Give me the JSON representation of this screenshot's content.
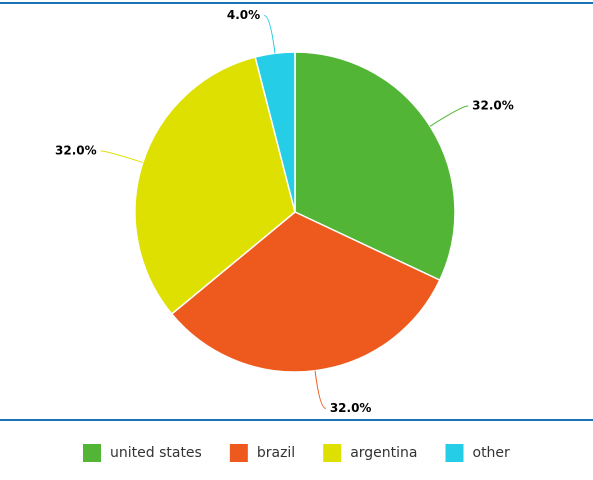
{
  "chart_data": {
    "type": "pie",
    "categories": [
      "united states",
      "brazil",
      "argentina",
      "other"
    ],
    "values": [
      32,
      32,
      32,
      4
    ],
    "value_labels": [
      "32.0%",
      "32.0%",
      "32.0%",
      "4.0%"
    ],
    "colors": [
      "#52b535",
      "#ee5a1e",
      "#dde000",
      "#26cde6"
    ],
    "legend": "bottom"
  }
}
